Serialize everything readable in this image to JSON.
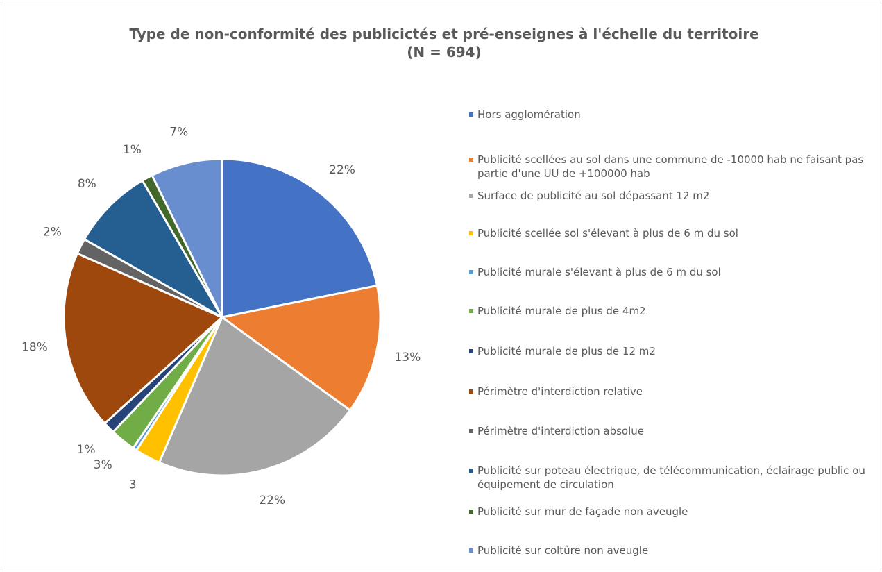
{
  "chart_data": {
    "type": "pie",
    "title": "Type de non-conformité des publicictés et pré-enseignes à l'échelle du territoire",
    "subtitle": "(N = 694)",
    "categories": [
      "Hors agglomération",
      "Publicité scellées au sol dans une commune de -10000 hab ne faisant pas partie d'une UU de +100000 hab",
      "Surface de publicité au sol dépassant 12 m2",
      "Publicité scellée sol s'élevant à plus de 6 m du sol",
      "Publicité murale s'élevant à plus de 6 m du sol",
      "Publicité murale de plus de 4m2",
      "Publicité murale de plus de 12 m2",
      "Périmètre d'interdiction relative",
      "Périmètre d'interdiction absolue",
      "Publicité sur poteau électrique, de télécommunication, éclairage public ou équipement de circulation",
      "Publicité sur mur de façade non aveugle",
      "Publicité sur coltûre non aveugle"
    ],
    "values": [
      21.8,
      13.2,
      21.5,
      2.6,
      0.4,
      2.6,
      1.2,
      18.3,
      1.6,
      8.4,
      1.1,
      7.3
    ],
    "value_labels": [
      "22%",
      "13%",
      "22%",
      "3",
      null,
      "3%",
      "1%",
      "18%",
      "2%",
      "8%",
      "1%",
      "7%"
    ],
    "colors": [
      "#4472c4",
      "#ed7d31",
      "#a5a5a5",
      "#ffc000",
      "#5b9bd5",
      "#70ad47",
      "#264478",
      "#9e480e",
      "#636363",
      "#255e91",
      "#43682b",
      "#698ed0"
    ],
    "legend": "right"
  }
}
